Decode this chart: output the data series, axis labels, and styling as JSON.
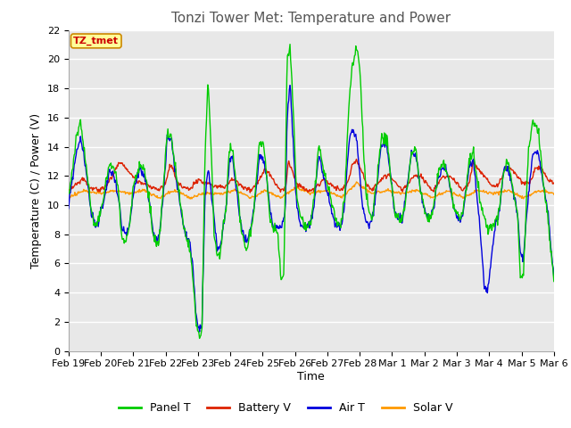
{
  "title": "Tonzi Tower Met: Temperature and Power",
  "ylabel": "Temperature (C) / Power (V)",
  "xlabel": "Time",
  "timezone_label": "TZ_tmet",
  "ylim": [
    0,
    22
  ],
  "yticks": [
    0,
    2,
    4,
    6,
    8,
    10,
    12,
    14,
    16,
    18,
    20,
    22
  ],
  "xtick_labels": [
    "Feb 19",
    "Feb 20",
    "Feb 21",
    "Feb 22",
    "Feb 23",
    "Feb 24",
    "Feb 25",
    "Feb 26",
    "Feb 27",
    "Feb 28",
    "Mar 1",
    "Mar 2",
    "Mar 3",
    "Mar 4",
    "Mar 5",
    "Mar 6"
  ],
  "series": {
    "Panel T": {
      "color": "#00CC00",
      "linewidth": 1.0
    },
    "Battery V": {
      "color": "#DD2200",
      "linewidth": 1.0
    },
    "Air T": {
      "color": "#0000DD",
      "linewidth": 1.0
    },
    "Solar V": {
      "color": "#FF9900",
      "linewidth": 1.0
    }
  },
  "background_color": "#ffffff",
  "plot_bg_color": "#e8e8e8",
  "grid_color": "#ffffff",
  "title_color": "#555555",
  "title_fontsize": 11,
  "label_fontsize": 9,
  "tick_fontsize": 8
}
